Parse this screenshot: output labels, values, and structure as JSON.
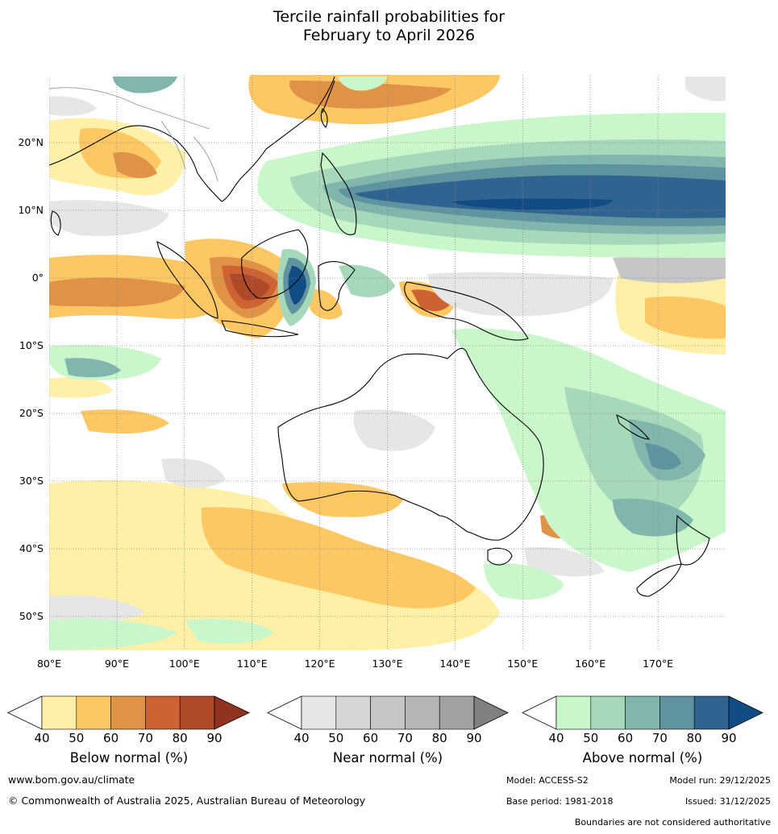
{
  "title": {
    "line1": "Tercile rainfall probabilities for",
    "line2": "February to April 2026"
  },
  "map": {
    "lon_range": [
      80,
      180
    ],
    "lat_range": [
      -55,
      30
    ],
    "lon_ticks": [
      "80°E",
      "90°E",
      "100°E",
      "110°E",
      "120°E",
      "130°E",
      "140°E",
      "150°E",
      "160°E",
      "170°E"
    ],
    "lat_ticks": [
      "20°N",
      "10°N",
      "0°",
      "10°S",
      "20°S",
      "30°S",
      "40°S",
      "50°S"
    ],
    "grid": true,
    "ocean_color": "#ffffff"
  },
  "colorbars": [
    {
      "title": "Below normal (%)",
      "ticks": [
        "40",
        "50",
        "60",
        "70",
        "80",
        "90"
      ],
      "colors": [
        "#fff0a8",
        "#fdc863",
        "#e09347",
        "#cf6233",
        "#b0492a",
        "#913321"
      ]
    },
    {
      "title": "Near normal (%)",
      "ticks": [
        "40",
        "50",
        "60",
        "70",
        "80",
        "90"
      ],
      "colors": [
        "#e6e6e6",
        "#d6d6d6",
        "#c6c6c6",
        "#b5b5b5",
        "#a2a2a2",
        "#808080"
      ]
    },
    {
      "title": "Above normal (%)",
      "ticks": [
        "40",
        "50",
        "60",
        "70",
        "80",
        "90"
      ],
      "colors": [
        "#c9f7cb",
        "#a6d9b9",
        "#80b6ae",
        "#5f93a0",
        "#316391",
        "#114d84"
      ]
    }
  ],
  "footer": {
    "website": "www.bom.gov.au/climate",
    "copyright": "© Commonwealth of Australia 2025, Australian Bureau of Meteorology",
    "model": "Model: ACCESS-S2",
    "model_run": "Model run: 29/12/2025",
    "base_period": "Base period: 1981-2018",
    "issued": "Issued: 31/12/2025",
    "disclaimer": "Boundaries are not considered authoritative"
  }
}
